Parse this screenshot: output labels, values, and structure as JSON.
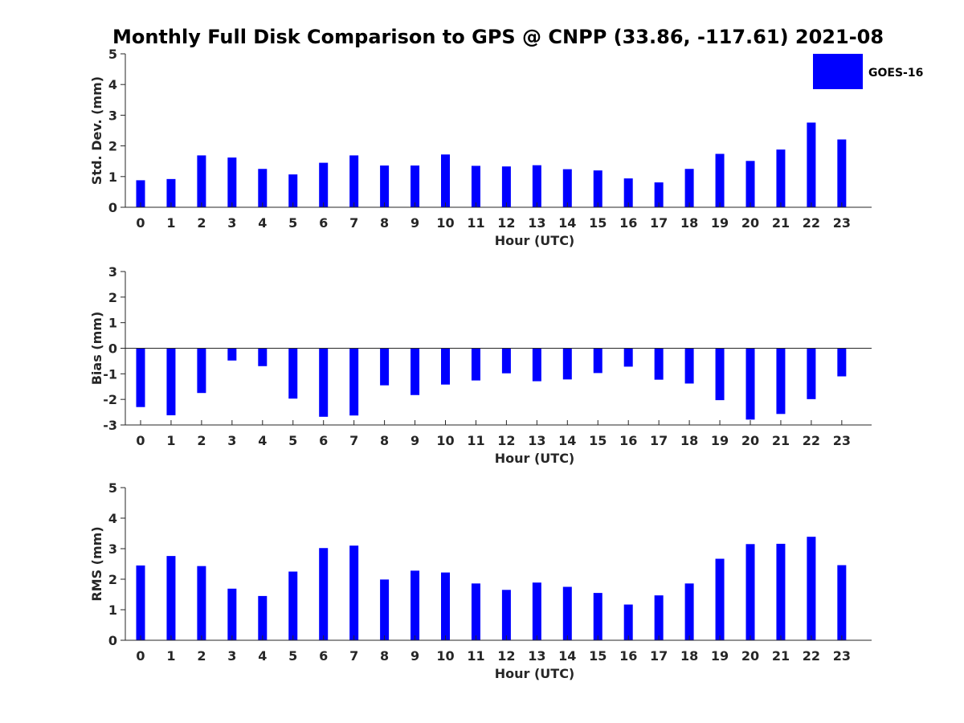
{
  "figure": {
    "title": "Monthly Full Disk Comparison to GPS @ CNPP (33.86, -117.61) 2021-08",
    "legend": {
      "label": "GOES-16",
      "color": "#0000ff",
      "placement": "top-right"
    }
  },
  "chart_data": [
    {
      "type": "bar",
      "xlabel": "Hour (UTC)",
      "ylabel": "Std. Dev. (mm)",
      "ylim": [
        0,
        5
      ],
      "yticks": [
        "0",
        "1",
        "2",
        "3",
        "4",
        "5"
      ],
      "categories": [
        "0",
        "1",
        "2",
        "3",
        "4",
        "5",
        "6",
        "7",
        "8",
        "9",
        "10",
        "11",
        "12",
        "13",
        "14",
        "15",
        "16",
        "17",
        "18",
        "19",
        "20",
        "21",
        "22",
        "23"
      ],
      "series": [
        {
          "name": "GOES-16",
          "color": "#0000ff",
          "values": [
            0.88,
            0.92,
            1.69,
            1.62,
            1.25,
            1.07,
            1.45,
            1.69,
            1.36,
            1.36,
            1.72,
            1.35,
            1.33,
            1.37,
            1.24,
            1.2,
            0.94,
            0.81,
            1.25,
            1.74,
            1.51,
            1.88,
            2.76,
            2.21
          ]
        }
      ]
    },
    {
      "type": "bar",
      "xlabel": "Hour (UTC)",
      "ylabel": "Bias (mm)",
      "ylim": [
        -3,
        3
      ],
      "yticks": [
        "-3",
        "-2",
        "-1",
        "0",
        "1",
        "2",
        "3"
      ],
      "categories": [
        "0",
        "1",
        "2",
        "3",
        "4",
        "5",
        "6",
        "7",
        "8",
        "9",
        "10",
        "11",
        "12",
        "13",
        "14",
        "15",
        "16",
        "17",
        "18",
        "19",
        "20",
        "21",
        "22",
        "23"
      ],
      "series": [
        {
          "name": "GOES-16",
          "color": "#0000ff",
          "values": [
            -2.3,
            -2.62,
            -1.75,
            -0.48,
            -0.7,
            -1.97,
            -2.68,
            -2.63,
            -1.45,
            -1.83,
            -1.42,
            -1.26,
            -0.98,
            -1.29,
            -1.22,
            -0.97,
            -0.72,
            -1.23,
            -1.38,
            -2.03,
            -2.79,
            -2.57,
            -1.99,
            -1.1
          ]
        }
      ]
    },
    {
      "type": "bar",
      "xlabel": "Hour (UTC)",
      "ylabel": "RMS (mm)",
      "ylim": [
        0,
        5
      ],
      "yticks": [
        "0",
        "1",
        "2",
        "3",
        "4",
        "5"
      ],
      "categories": [
        "0",
        "1",
        "2",
        "3",
        "4",
        "5",
        "6",
        "7",
        "8",
        "9",
        "10",
        "11",
        "12",
        "13",
        "14",
        "15",
        "16",
        "17",
        "18",
        "19",
        "20",
        "21",
        "22",
        "23"
      ],
      "series": [
        {
          "name": "GOES-16",
          "color": "#0000ff",
          "values": [
            2.45,
            2.76,
            2.43,
            1.69,
            1.45,
            2.25,
            3.02,
            3.1,
            1.99,
            2.28,
            2.22,
            1.86,
            1.65,
            1.89,
            1.75,
            1.55,
            1.17,
            1.47,
            1.86,
            2.67,
            3.15,
            3.16,
            3.39,
            2.46
          ]
        }
      ]
    }
  ]
}
